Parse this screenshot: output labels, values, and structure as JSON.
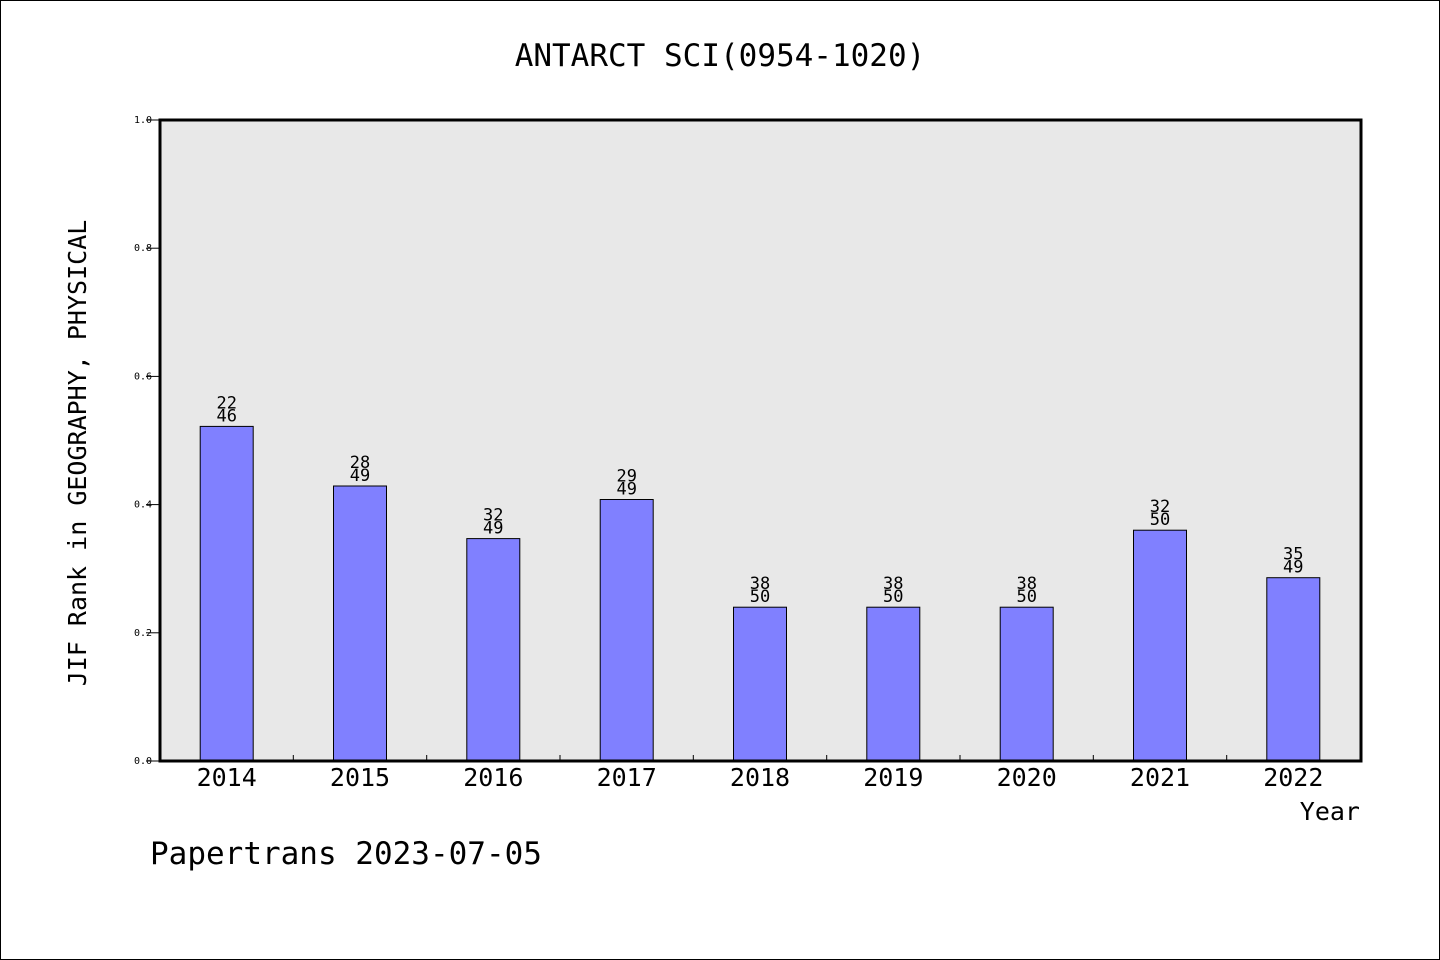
{
  "chart_data": {
    "type": "bar",
    "title": "ANTARCT SCI(0954-1020)",
    "xlabel": "Year",
    "ylabel": "JIF Rank in GEOGRAPHY, PHYSICAL",
    "ylim": [
      0,
      1.0
    ],
    "yticks": [
      "0.0",
      "0.2",
      "0.4",
      "0.6",
      "0.8",
      "1.0"
    ],
    "categories": [
      "2014",
      "2015",
      "2016",
      "2017",
      "2018",
      "2019",
      "2020",
      "2021",
      "2022"
    ],
    "values": [
      0.522,
      0.429,
      0.347,
      0.408,
      0.24,
      0.24,
      0.24,
      0.36,
      0.286
    ],
    "bar_labels": [
      {
        "rank": "22",
        "total": "46"
      },
      {
        "rank": "28",
        "total": "49"
      },
      {
        "rank": "32",
        "total": "49"
      },
      {
        "rank": "29",
        "total": "49"
      },
      {
        "rank": "38",
        "total": "50"
      },
      {
        "rank": "38",
        "total": "50"
      },
      {
        "rank": "38",
        "total": "50"
      },
      {
        "rank": "32",
        "total": "50"
      },
      {
        "rank": "35",
        "total": "49"
      }
    ],
    "grid": false,
    "bar_color": "#8080ff",
    "plot_background": "#e8e8e8"
  },
  "footer": "Papertrans 2023-07-05"
}
